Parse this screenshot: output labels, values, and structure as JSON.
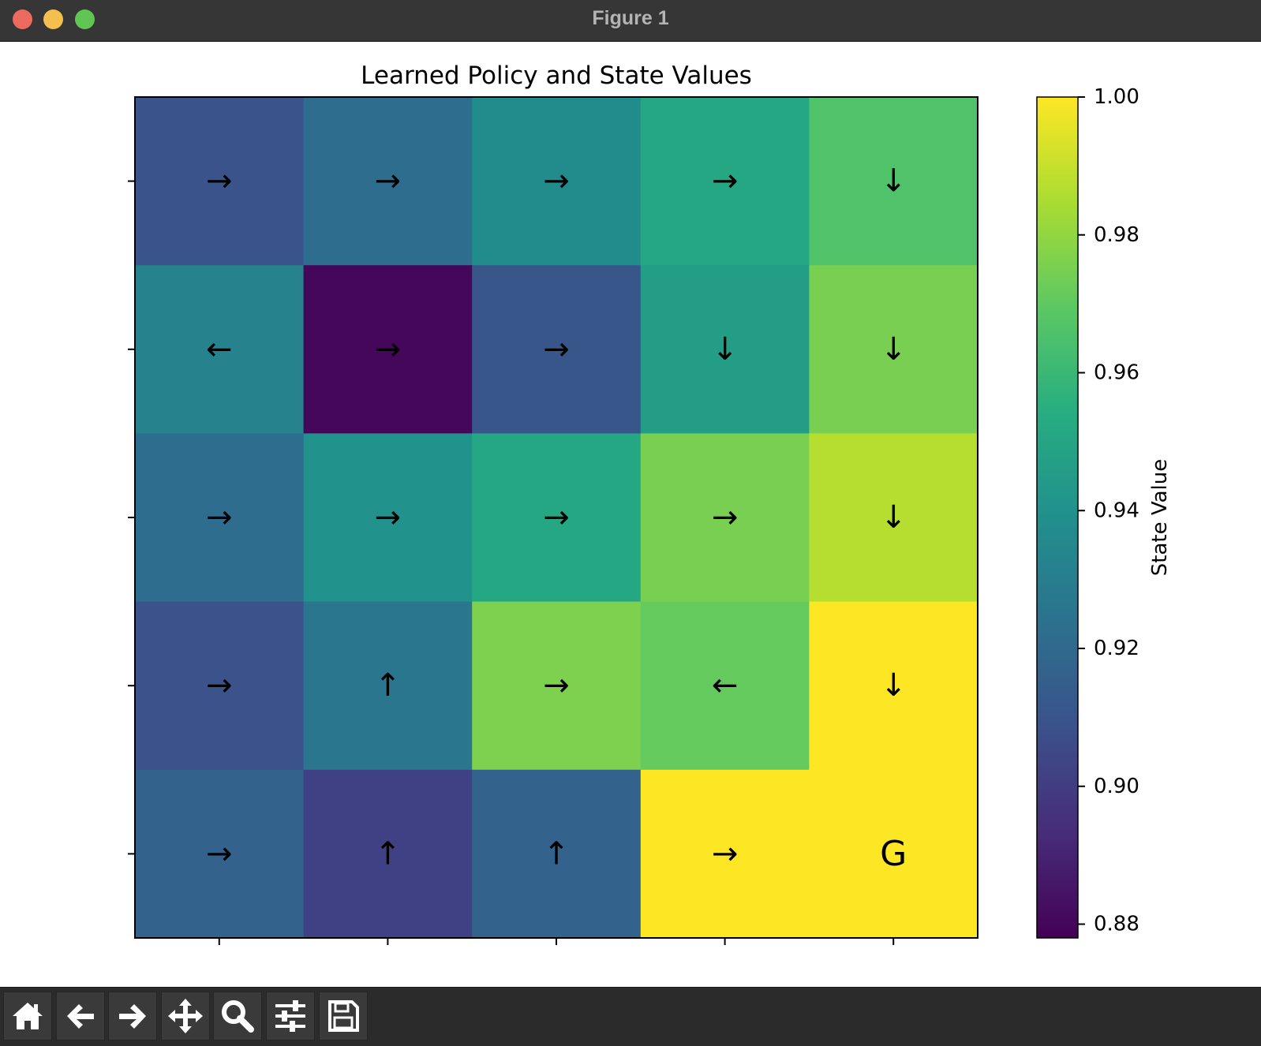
{
  "window": {
    "title": "Figure 1"
  },
  "toolbar": {
    "buttons": [
      {
        "name": "home-button",
        "icon": "home-icon"
      },
      {
        "name": "back-button",
        "icon": "arrow-left-icon"
      },
      {
        "name": "forward-button",
        "icon": "arrow-right-icon"
      },
      {
        "name": "pan-button",
        "icon": "move-icon"
      },
      {
        "name": "zoom-button",
        "icon": "magnifier-icon"
      },
      {
        "name": "configure-subplots-button",
        "icon": "sliders-icon"
      },
      {
        "name": "save-button",
        "icon": "floppy-disk-icon"
      }
    ]
  },
  "chart_data": {
    "type": "heatmap",
    "title": "Learned Policy and State Values",
    "colormap": "viridis",
    "rows": 5,
    "cols": 5,
    "values": [
      [
        0.91,
        0.922,
        0.937,
        0.951,
        0.966
      ],
      [
        0.932,
        0.88,
        0.911,
        0.946,
        0.975
      ],
      [
        0.922,
        0.94,
        0.951,
        0.975,
        0.987
      ],
      [
        0.909,
        0.926,
        0.976,
        0.971,
        1.0
      ],
      [
        0.917,
        0.902,
        0.917,
        1.0,
        1.0
      ]
    ],
    "arrows": [
      [
        "→",
        "→",
        "→",
        "→",
        "↓"
      ],
      [
        "←",
        "→",
        "→",
        "↓",
        "↓"
      ],
      [
        "→",
        "→",
        "→",
        "→",
        "↓"
      ],
      [
        "→",
        "↑",
        "→",
        "←",
        "↓"
      ],
      [
        "→",
        "↑",
        "↑",
        "→",
        "G"
      ]
    ],
    "xlabel": "",
    "ylabel": "",
    "colorbar": {
      "label": "State Value",
      "range": [
        0.878,
        1.0
      ],
      "ticks": [
        "0.88",
        "0.90",
        "0.92",
        "0.94",
        "0.96",
        "0.98",
        "1.00"
      ],
      "tick_values": [
        0.88,
        0.9,
        0.92,
        0.94,
        0.96,
        0.98,
        1.0
      ]
    },
    "grid": false,
    "x_tick_labels_shown": false,
    "y_tick_labels_shown": false
  }
}
